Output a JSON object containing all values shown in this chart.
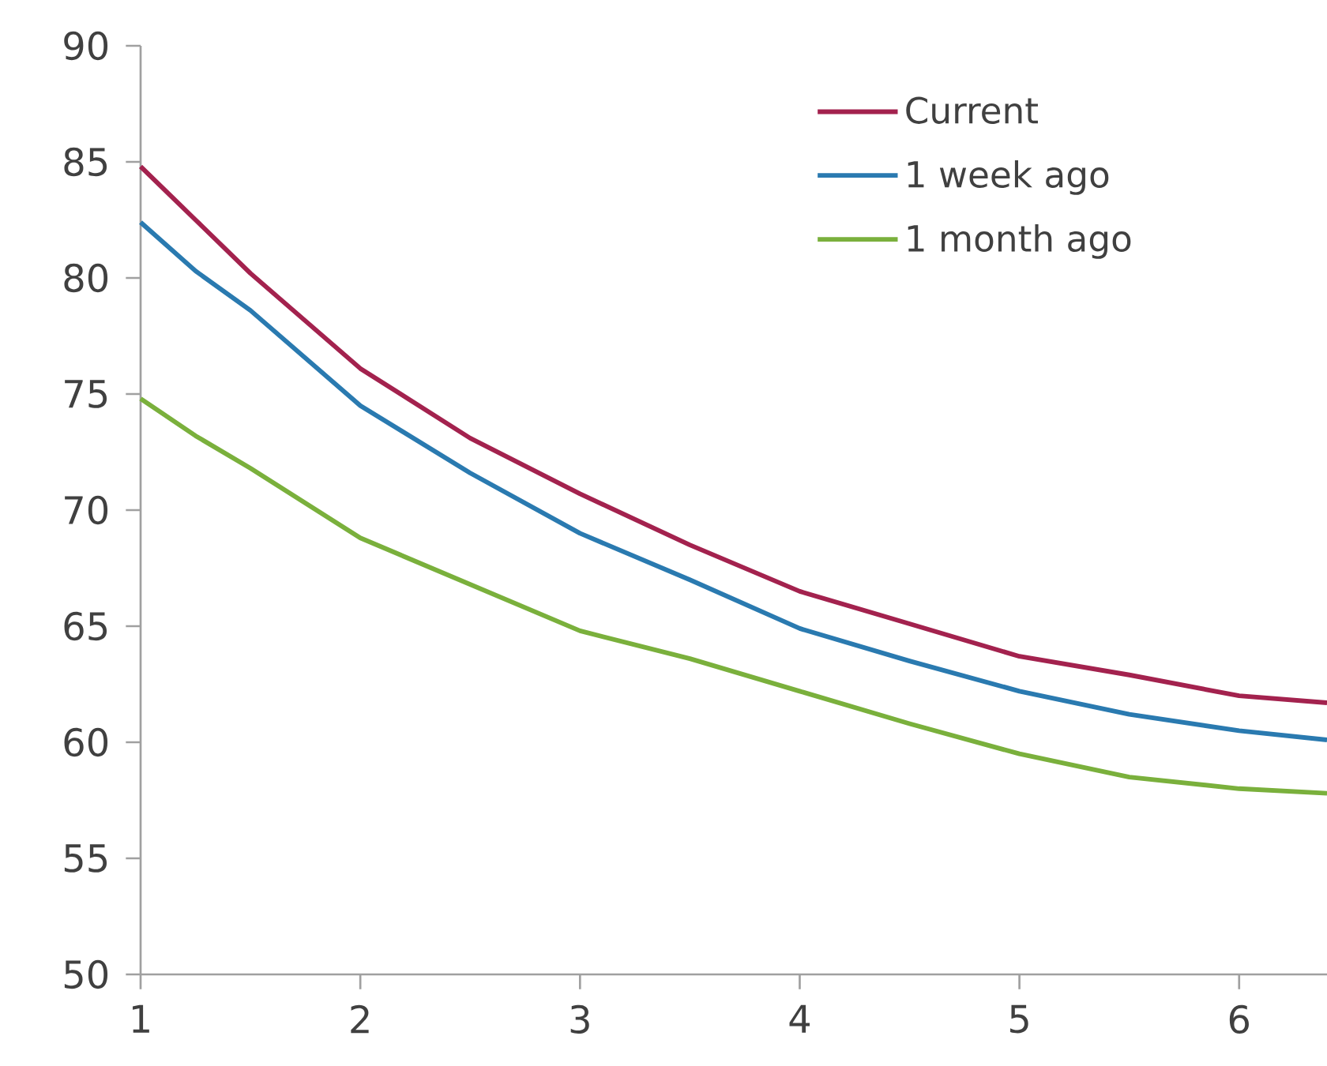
{
  "chart_data": {
    "type": "line",
    "x": [
      1,
      1.25,
      1.5,
      2,
      2.5,
      3,
      3.5,
      4,
      4.5,
      5,
      5.5,
      6,
      6.4
    ],
    "series": [
      {
        "name": "Current",
        "color": "#a3224e",
        "values": [
          84.8,
          82.5,
          80.2,
          76.1,
          73.1,
          70.7,
          68.5,
          66.5,
          65.1,
          63.7,
          62.9,
          62.0,
          61.7
        ]
      },
      {
        "name": "1 week ago",
        "color": "#2a7ab0",
        "values": [
          82.4,
          80.3,
          78.6,
          74.5,
          71.6,
          69.0,
          67.0,
          64.9,
          63.5,
          62.2,
          61.2,
          60.5,
          60.1
        ]
      },
      {
        "name": "1 month ago",
        "color": "#7ab03c",
        "values": [
          74.8,
          73.2,
          71.8,
          68.8,
          66.8,
          64.8,
          63.6,
          62.2,
          60.8,
          59.5,
          58.5,
          58.0,
          57.8
        ]
      }
    ],
    "xlim": [
      1,
      6.4
    ],
    "ylim": [
      50,
      90
    ],
    "xticks": [
      1,
      2,
      3,
      4,
      5,
      6
    ],
    "yticks": [
      50,
      55,
      60,
      65,
      70,
      75,
      80,
      85,
      90
    ],
    "legend": "top right",
    "marker": "none",
    "line_style": "solid"
  }
}
